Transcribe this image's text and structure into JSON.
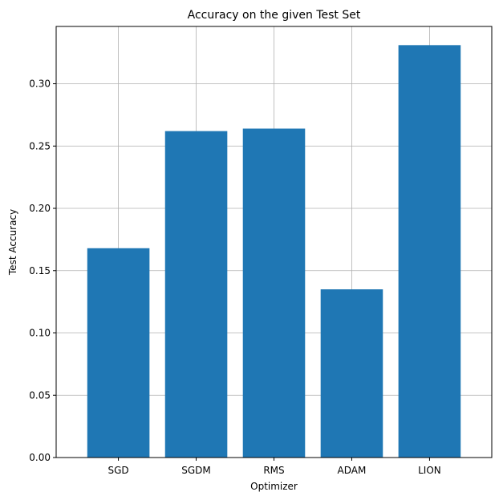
{
  "chart_data": {
    "type": "bar",
    "title": "Accuracy on the given Test Set",
    "xlabel": "Optimizer",
    "ylabel": "Test Accuracy",
    "categories": [
      "SGD",
      "SGDM",
      "RMS",
      "ADAM",
      "LION"
    ],
    "values": [
      0.168,
      0.262,
      0.264,
      0.135,
      0.331
    ],
    "ylim": [
      0,
      0.346
    ],
    "yticks": [
      0.0,
      0.05,
      0.1,
      0.15,
      0.2,
      0.25,
      0.3
    ],
    "ytick_labels": [
      "0.00",
      "0.05",
      "0.10",
      "0.15",
      "0.20",
      "0.25",
      "0.30"
    ],
    "grid": true,
    "bar_color": "#1f77b4",
    "grid_color": "#b0b0b0"
  }
}
